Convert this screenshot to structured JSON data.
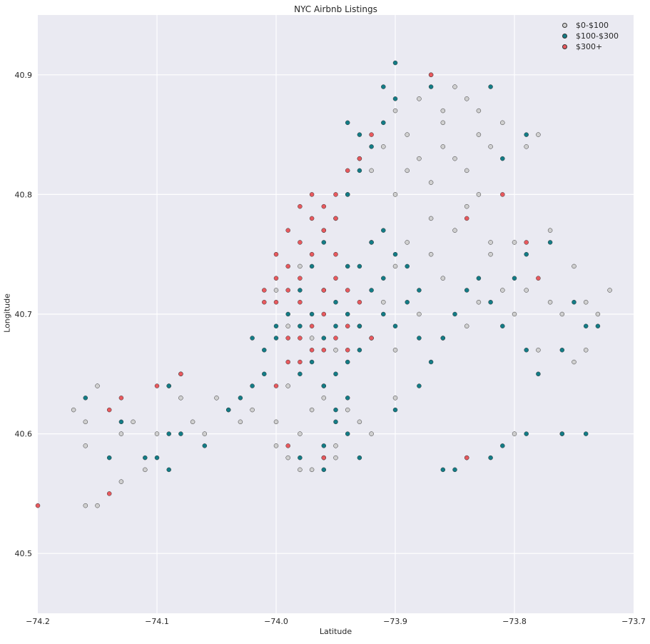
{
  "chart_data": {
    "type": "scatter",
    "title": "NYC Airbnb Listings",
    "xlabel": "Latitude",
    "ylabel": "Longitude",
    "xlim": [
      -74.2,
      -73.7
    ],
    "ylim": [
      40.45,
      40.95
    ],
    "xticks": [
      "−74.2",
      "−74.1",
      "−74.0",
      "−73.9",
      "−73.8",
      "−73.7"
    ],
    "xtick_values": [
      -74.2,
      -74.1,
      -74.0,
      -73.9,
      -73.8,
      -73.7
    ],
    "yticks": [
      "40.5",
      "40.6",
      "40.7",
      "40.8",
      "40.9"
    ],
    "ytick_values": [
      40.5,
      40.6,
      40.7,
      40.8,
      40.9
    ],
    "grid": true,
    "legend_position": "top-right",
    "series": [
      {
        "name": "$0-$100",
        "color": "#d0d0d0",
        "points": [
          [
            -73.86,
            40.87
          ],
          [
            -73.83,
            40.85
          ],
          [
            -73.85,
            40.83
          ],
          [
            -73.87,
            40.81
          ],
          [
            -73.83,
            40.87
          ],
          [
            -73.88,
            40.88
          ],
          [
            -73.89,
            40.85
          ],
          [
            -73.84,
            40.88
          ],
          [
            -73.82,
            40.84
          ],
          [
            -73.91,
            40.84
          ],
          [
            -73.88,
            40.83
          ],
          [
            -73.86,
            40.86
          ],
          [
            -73.84,
            40.82
          ],
          [
            -73.78,
            40.85
          ],
          [
            -73.79,
            40.84
          ],
          [
            -73.92,
            40.82
          ],
          [
            -73.9,
            40.87
          ],
          [
            -73.85,
            40.89
          ],
          [
            -73.87,
            40.9
          ],
          [
            -73.83,
            40.8
          ],
          [
            -73.8,
            40.76
          ],
          [
            -73.77,
            40.77
          ],
          [
            -73.75,
            40.74
          ],
          [
            -73.73,
            40.7
          ],
          [
            -73.76,
            40.7
          ],
          [
            -73.78,
            40.67
          ],
          [
            -73.74,
            40.67
          ],
          [
            -73.79,
            40.72
          ],
          [
            -73.82,
            40.75
          ],
          [
            -73.81,
            40.72
          ],
          [
            -73.84,
            40.69
          ],
          [
            -73.86,
            40.68
          ],
          [
            -73.88,
            40.7
          ],
          [
            -73.9,
            40.67
          ],
          [
            -73.9,
            40.63
          ],
          [
            -73.92,
            40.6
          ],
          [
            -73.94,
            40.62
          ],
          [
            -73.96,
            40.63
          ],
          [
            -73.98,
            40.6
          ],
          [
            -74.0,
            40.61
          ],
          [
            -74.02,
            40.62
          ],
          [
            -74.04,
            40.62
          ],
          [
            -74.03,
            40.61
          ],
          [
            -73.99,
            40.64
          ],
          [
            -74.09,
            40.64
          ],
          [
            -74.08,
            40.63
          ],
          [
            -74.07,
            40.61
          ],
          [
            -74.1,
            40.6
          ],
          [
            -74.11,
            40.57
          ],
          [
            -74.13,
            40.6
          ],
          [
            -74.16,
            40.61
          ],
          [
            -74.17,
            40.62
          ],
          [
            -74.15,
            40.64
          ],
          [
            -74.16,
            40.59
          ],
          [
            -74.15,
            40.54
          ],
          [
            -74.16,
            40.54
          ],
          [
            -74.13,
            40.56
          ],
          [
            -74.12,
            40.61
          ],
          [
            -73.95,
            40.58
          ],
          [
            -73.97,
            40.57
          ],
          [
            -73.99,
            40.58
          ],
          [
            -73.95,
            40.59
          ],
          [
            -73.93,
            40.61
          ],
          [
            -73.9,
            40.74
          ],
          [
            -73.87,
            40.75
          ],
          [
            -73.86,
            40.73
          ],
          [
            -73.92,
            40.76
          ],
          [
            -73.89,
            40.76
          ],
          [
            -73.91,
            40.71
          ],
          [
            -73.93,
            40.69
          ],
          [
            -73.95,
            40.67
          ],
          [
            -73.97,
            40.68
          ],
          [
            -73.99,
            40.69
          ],
          [
            -74.0,
            40.72
          ],
          [
            -73.98,
            40.74
          ],
          [
            -73.96,
            40.77
          ],
          [
            -73.94,
            40.8
          ],
          [
            -73.93,
            40.83
          ],
          [
            -73.75,
            40.66
          ],
          [
            -73.76,
            40.6
          ],
          [
            -73.8,
            40.6
          ],
          [
            -73.72,
            40.72
          ],
          [
            -73.74,
            40.71
          ],
          [
            -73.8,
            40.7
          ],
          [
            -73.77,
            40.71
          ],
          [
            -73.83,
            40.71
          ],
          [
            -73.87,
            40.78
          ],
          [
            -73.85,
            40.77
          ],
          [
            -73.82,
            40.76
          ],
          [
            -73.84,
            40.79
          ],
          [
            -73.89,
            40.82
          ],
          [
            -73.86,
            40.84
          ],
          [
            -73.81,
            40.86
          ],
          [
            -73.9,
            40.8
          ],
          [
            -73.96,
            40.64
          ],
          [
            -73.97,
            40.62
          ],
          [
            -74.05,
            40.63
          ],
          [
            -74.06,
            40.6
          ],
          [
            -74.0,
            40.59
          ],
          [
            -73.98,
            40.57
          ]
        ]
      },
      {
        "name": "$100-$300",
        "color": "#137c86",
        "points": [
          [
            -73.95,
            40.78
          ],
          [
            -73.94,
            40.8
          ],
          [
            -73.93,
            40.82
          ],
          [
            -73.92,
            40.84
          ],
          [
            -73.91,
            40.86
          ],
          [
            -73.9,
            40.88
          ],
          [
            -73.96,
            40.76
          ],
          [
            -73.97,
            40.74
          ],
          [
            -73.98,
            40.72
          ],
          [
            -73.99,
            40.7
          ],
          [
            -74.0,
            40.68
          ],
          [
            -74.01,
            40.67
          ],
          [
            -73.95,
            40.71
          ],
          [
            -73.94,
            40.7
          ],
          [
            -73.93,
            40.69
          ],
          [
            -73.92,
            40.68
          ],
          [
            -73.91,
            40.7
          ],
          [
            -73.92,
            40.72
          ],
          [
            -73.93,
            40.74
          ],
          [
            -73.92,
            40.76
          ],
          [
            -73.91,
            40.77
          ],
          [
            -73.9,
            40.75
          ],
          [
            -73.89,
            40.74
          ],
          [
            -73.88,
            40.72
          ],
          [
            -73.95,
            40.69
          ],
          [
            -73.96,
            40.68
          ],
          [
            -73.97,
            40.66
          ],
          [
            -73.98,
            40.65
          ],
          [
            -73.96,
            40.64
          ],
          [
            -73.95,
            40.65
          ],
          [
            -73.94,
            40.66
          ],
          [
            -73.93,
            40.67
          ],
          [
            -73.94,
            40.63
          ],
          [
            -73.95,
            40.61
          ],
          [
            -73.94,
            40.6
          ],
          [
            -73.96,
            40.59
          ],
          [
            -73.96,
            40.58
          ],
          [
            -73.95,
            40.62
          ],
          [
            -73.9,
            40.62
          ],
          [
            -73.88,
            40.64
          ],
          [
            -73.87,
            40.66
          ],
          [
            -73.86,
            40.68
          ],
          [
            -73.85,
            40.7
          ],
          [
            -73.84,
            40.72
          ],
          [
            -73.83,
            40.73
          ],
          [
            -73.82,
            40.71
          ],
          [
            -73.81,
            40.69
          ],
          [
            -73.8,
            40.73
          ],
          [
            -73.79,
            40.75
          ],
          [
            -73.77,
            40.76
          ],
          [
            -73.75,
            40.71
          ],
          [
            -73.74,
            40.69
          ],
          [
            -73.73,
            40.69
          ],
          [
            -73.76,
            40.67
          ],
          [
            -73.78,
            40.65
          ],
          [
            -73.79,
            40.67
          ],
          [
            -73.81,
            40.83
          ],
          [
            -73.79,
            40.85
          ],
          [
            -73.82,
            40.89
          ],
          [
            -73.87,
            40.89
          ],
          [
            -73.9,
            40.91
          ],
          [
            -73.91,
            40.89
          ],
          [
            -73.94,
            40.86
          ],
          [
            -73.93,
            40.85
          ],
          [
            -73.84,
            40.58
          ],
          [
            -73.82,
            40.58
          ],
          [
            -73.81,
            40.59
          ],
          [
            -73.79,
            40.6
          ],
          [
            -73.76,
            40.6
          ],
          [
            -73.74,
            40.6
          ],
          [
            -73.85,
            40.57
          ],
          [
            -73.86,
            40.57
          ],
          [
            -73.98,
            40.58
          ],
          [
            -73.96,
            40.57
          ],
          [
            -73.93,
            40.58
          ],
          [
            -74.09,
            40.64
          ],
          [
            -74.08,
            40.65
          ],
          [
            -74.08,
            40.6
          ],
          [
            -74.09,
            40.6
          ],
          [
            -74.1,
            40.58
          ],
          [
            -74.09,
            40.57
          ],
          [
            -74.06,
            40.59
          ],
          [
            -74.13,
            40.61
          ],
          [
            -74.14,
            40.58
          ],
          [
            -74.16,
            40.63
          ],
          [
            -74.11,
            40.58
          ],
          [
            -74.0,
            40.69
          ],
          [
            -74.02,
            40.68
          ],
          [
            -74.03,
            40.63
          ],
          [
            -74.04,
            40.62
          ],
          [
            -74.02,
            40.64
          ],
          [
            -74.01,
            40.65
          ],
          [
            -73.97,
            40.7
          ],
          [
            -73.98,
            40.69
          ],
          [
            -73.96,
            40.72
          ],
          [
            -73.94,
            40.74
          ],
          [
            -73.91,
            40.73
          ],
          [
            -73.89,
            40.71
          ],
          [
            -73.9,
            40.69
          ],
          [
            -73.88,
            40.68
          ]
        ]
      },
      {
        "name": "$300+",
        "color": "#e8595e",
        "points": [
          [
            -73.99,
            40.74
          ],
          [
            -73.98,
            40.76
          ],
          [
            -73.97,
            40.78
          ],
          [
            -73.96,
            40.79
          ],
          [
            -73.95,
            40.8
          ],
          [
            -73.94,
            40.82
          ],
          [
            -73.93,
            40.83
          ],
          [
            -73.92,
            40.85
          ],
          [
            -74.0,
            40.73
          ],
          [
            -74.01,
            40.72
          ],
          [
            -74.0,
            40.75
          ],
          [
            -73.99,
            40.77
          ],
          [
            -73.98,
            40.73
          ],
          [
            -73.97,
            40.75
          ],
          [
            -73.96,
            40.77
          ],
          [
            -73.95,
            40.78
          ],
          [
            -73.98,
            40.71
          ],
          [
            -74.0,
            40.71
          ],
          [
            -74.01,
            40.71
          ],
          [
            -73.99,
            40.72
          ],
          [
            -73.96,
            40.72
          ],
          [
            -73.95,
            40.73
          ],
          [
            -73.96,
            40.7
          ],
          [
            -73.97,
            40.69
          ],
          [
            -73.98,
            40.68
          ],
          [
            -73.99,
            40.68
          ],
          [
            -73.97,
            40.67
          ],
          [
            -73.96,
            40.67
          ],
          [
            -73.95,
            40.68
          ],
          [
            -73.94,
            40.69
          ],
          [
            -73.93,
            40.71
          ],
          [
            -73.94,
            40.72
          ],
          [
            -73.95,
            40.75
          ],
          [
            -73.98,
            40.79
          ],
          [
            -73.97,
            40.8
          ],
          [
            -73.99,
            40.66
          ],
          [
            -73.98,
            40.66
          ],
          [
            -74.2,
            40.54
          ],
          [
            -74.14,
            40.55
          ],
          [
            -74.14,
            40.62
          ],
          [
            -74.13,
            40.63
          ],
          [
            -74.1,
            40.64
          ],
          [
            -74.08,
            40.65
          ],
          [
            -74.0,
            40.64
          ],
          [
            -73.84,
            40.58
          ],
          [
            -73.81,
            40.8
          ],
          [
            -73.84,
            40.78
          ],
          [
            -73.79,
            40.76
          ],
          [
            -73.78,
            40.73
          ],
          [
            -73.87,
            40.9
          ],
          [
            -73.96,
            40.58
          ],
          [
            -73.99,
            40.59
          ],
          [
            -73.94,
            40.67
          ],
          [
            -73.92,
            40.68
          ]
        ]
      }
    ]
  }
}
